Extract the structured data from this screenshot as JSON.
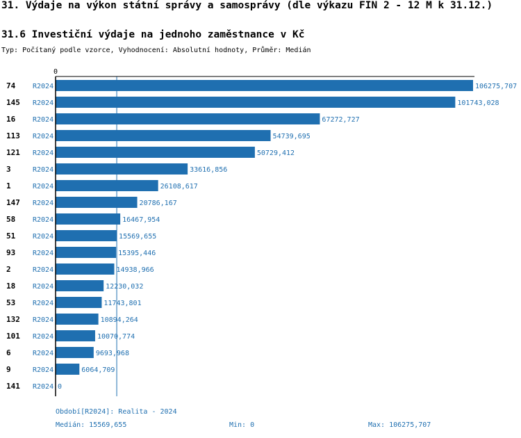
{
  "header": {
    "title": "31. Výdaje na výkon státní správy a samosprávy (dle výkazu FIN 2 - 12 M k 31.12.)",
    "subtitle": "31.6 Investiční výdaje na jednoho zaměstnance v Kč",
    "type_line": "Typ: Počítaný podle vzorce, Vyhodnocení: Absolutní hodnoty, Průměr: Medián"
  },
  "colors": {
    "bar": "#1f6fb0",
    "text_blue": "#1f6fb0",
    "axis": "#000000",
    "median_line": "#1f6fb0"
  },
  "chart_data": {
    "type": "bar",
    "orientation": "horizontal",
    "axis_zero_label": "0",
    "median_value": 15569655,
    "xlim": [
      0,
      106275707
    ],
    "rows": [
      {
        "id": "74",
        "period": "R2024",
        "value": 106275707,
        "label": "106275,707"
      },
      {
        "id": "145",
        "period": "R2024",
        "value": 101743028,
        "label": "101743,028"
      },
      {
        "id": "16",
        "period": "R2024",
        "value": 67272727,
        "label": "67272,727"
      },
      {
        "id": "113",
        "period": "R2024",
        "value": 54739695,
        "label": "54739,695"
      },
      {
        "id": "121",
        "period": "R2024",
        "value": 50729412,
        "label": "50729,412"
      },
      {
        "id": "3",
        "period": "R2024",
        "value": 33616856,
        "label": "33616,856"
      },
      {
        "id": "1",
        "period": "R2024",
        "value": 26108617,
        "label": "26108,617"
      },
      {
        "id": "147",
        "period": "R2024",
        "value": 20786167,
        "label": "20786,167"
      },
      {
        "id": "58",
        "period": "R2024",
        "value": 16467954,
        "label": "16467,954"
      },
      {
        "id": "51",
        "period": "R2024",
        "value": 15569655,
        "label": "15569,655"
      },
      {
        "id": "93",
        "period": "R2024",
        "value": 15395446,
        "label": "15395,446"
      },
      {
        "id": "2",
        "period": "R2024",
        "value": 14938966,
        "label": "14938,966"
      },
      {
        "id": "18",
        "period": "R2024",
        "value": 12230032,
        "label": "12230,032"
      },
      {
        "id": "53",
        "period": "R2024",
        "value": 11743801,
        "label": "11743,801"
      },
      {
        "id": "132",
        "period": "R2024",
        "value": 10894264,
        "label": "10894,264"
      },
      {
        "id": "101",
        "period": "R2024",
        "value": 10070774,
        "label": "10070,774"
      },
      {
        "id": "6",
        "period": "R2024",
        "value": 9693968,
        "label": "9693,968"
      },
      {
        "id": "9",
        "period": "R2024",
        "value": 6064709,
        "label": "6064,709"
      },
      {
        "id": "141",
        "period": "R2024",
        "value": 0,
        "label": "0"
      }
    ]
  },
  "footer": {
    "period_line": "Období[R2024]: Realita - 2024",
    "median": "Medián: 15569,655",
    "min": "Min: 0",
    "max": "Max: 106275,707"
  }
}
